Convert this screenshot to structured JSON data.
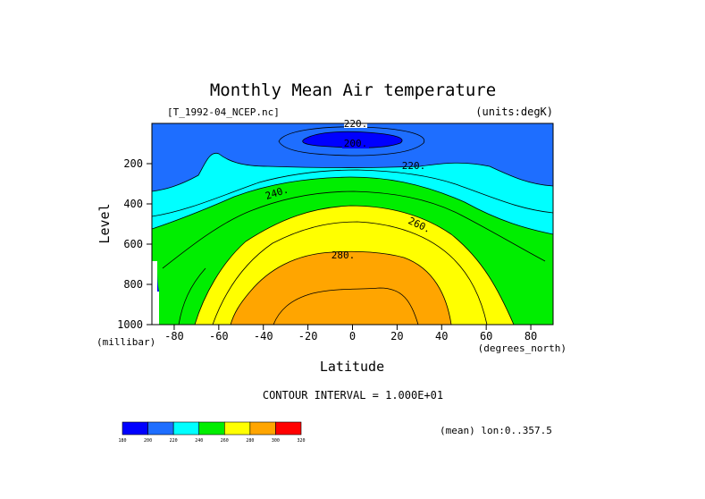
{
  "title": "Monthly Mean Air temperature",
  "file_label": "[T_1992-04_NCEP.nc]",
  "units_label": "(units:degK)",
  "contour_interval": "CONTOUR INTERVAL = 1.000E+01",
  "averaging_label": "(mean) lon:0..357.5",
  "chart_data": {
    "type": "contour",
    "title": "Monthly Mean Air temperature",
    "xlabel": "Latitude",
    "ylabel": "Level",
    "x_unit": "(degrees_north)",
    "y_unit": "(millibar)",
    "xlim": [
      -90,
      90
    ],
    "ylim": [
      1000,
      0
    ],
    "x_ticks": [
      -80,
      -60,
      -40,
      -20,
      0,
      20,
      40,
      60,
      80
    ],
    "y_ticks": [
      200,
      400,
      600,
      800,
      1000
    ],
    "contour_labels": [
      "200.",
      "220.",
      "240.",
      "260.",
      "280.",
      "220."
    ],
    "contour_interval": 10,
    "color_levels": [
      180,
      200,
      220,
      240,
      260,
      280,
      300,
      320
    ],
    "colors": [
      "#0000ff",
      "#1e6eff",
      "#00ffff",
      "#00ee00",
      "#ffff00",
      "#ffa500",
      "#ff0000"
    ],
    "colorbar_labels": [
      "180",
      "200",
      "220",
      "240",
      "260",
      "280",
      "300",
      "320"
    ]
  }
}
